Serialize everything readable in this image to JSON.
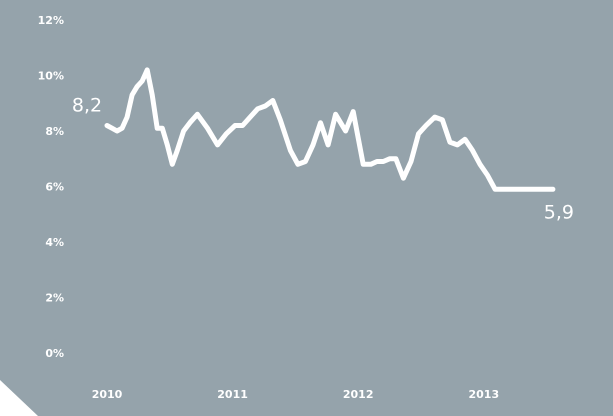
{
  "chart_data": {
    "type": "line",
    "title": "",
    "xlabel": "",
    "ylabel": "",
    "ylim": [
      0,
      12
    ],
    "xlim": [
      2010,
      2013.75
    ],
    "grid": false,
    "legend": "none",
    "y_ticks": [
      {
        "value": 0,
        "label": "0%"
      },
      {
        "value": 2,
        "label": "2%"
      },
      {
        "value": 4,
        "label": "4%"
      },
      {
        "value": 6,
        "label": "6%"
      },
      {
        "value": 8,
        "label": "8%"
      },
      {
        "value": 10,
        "label": "10%"
      },
      {
        "value": 12,
        "label": "12%"
      }
    ],
    "x_ticks": [
      {
        "value": 2010,
        "label": "2010"
      },
      {
        "value": 2011,
        "label": "2011"
      },
      {
        "value": 2012,
        "label": "2012"
      },
      {
        "value": 2013,
        "label": "2013"
      }
    ],
    "series": [
      {
        "x": [
          2010.0,
          2010.04,
          2010.08,
          2010.12,
          2010.16,
          2010.2,
          2010.24,
          2010.28,
          2010.32,
          2010.36,
          2010.4,
          2010.44,
          2010.48,
          2010.52,
          2010.56,
          2010.61,
          2010.66,
          2010.72,
          2010.8,
          2010.88,
          2010.95,
          2011.02,
          2011.08,
          2011.14,
          2011.2,
          2011.26,
          2011.32,
          2011.38,
          2011.46,
          2011.52,
          2011.58,
          2011.64,
          2011.7,
          2011.76,
          2011.82,
          2011.9,
          2011.96,
          2012.04,
          2012.1,
          2012.15,
          2012.2,
          2012.25,
          2012.3,
          2012.36,
          2012.42,
          2012.48,
          2012.54,
          2012.61,
          2012.67,
          2012.73,
          2012.79,
          2012.85,
          2012.91,
          2012.97,
          2013.03,
          2013.09,
          2013.14,
          2013.19,
          2013.24,
          2013.29,
          2013.35,
          2013.4,
          2013.45,
          2013.5,
          2013.55
        ],
        "values": [
          8.2,
          8.1,
          8.0,
          8.1,
          8.5,
          9.3,
          9.6,
          9.8,
          10.2,
          9.3,
          8.1,
          8.1,
          7.5,
          6.8,
          7.3,
          8.0,
          8.3,
          8.6,
          8.1,
          7.5,
          7.9,
          8.2,
          8.2,
          8.5,
          8.8,
          8.9,
          9.1,
          8.4,
          7.3,
          6.8,
          6.9,
          7.5,
          8.3,
          7.5,
          8.6,
          8.0,
          8.7,
          6.8,
          6.8,
          6.9,
          6.9,
          7.0,
          7.0,
          6.3,
          6.9,
          7.9,
          8.2,
          8.5,
          8.4,
          7.6,
          7.5,
          7.7,
          7.3,
          6.8,
          6.4,
          5.9,
          5.9,
          5.9,
          5.9,
          5.9,
          5.9,
          5.9,
          5.9,
          5.9,
          5.9
        ]
      }
    ],
    "annotations": [
      {
        "text": "8,2",
        "point": "first"
      },
      {
        "text": "5,9",
        "point": "last"
      }
    ],
    "colors": {
      "panel": "#95a3ab",
      "line": "#ffffff",
      "text": "#ffffff"
    }
  }
}
